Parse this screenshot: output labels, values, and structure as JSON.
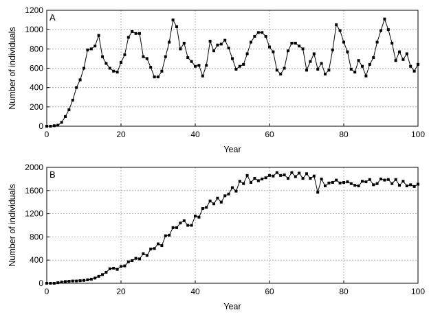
{
  "chart_data": [
    {
      "type": "line",
      "panel_label": "A",
      "xlabel": "Year",
      "ylabel": "Number of individuals",
      "xlim": [
        0,
        100
      ],
      "ylim": [
        0,
        1200
      ],
      "xticks": [
        0,
        20,
        40,
        60,
        80,
        100
      ],
      "yticks": [
        0,
        200,
        400,
        600,
        800,
        1000,
        1200
      ],
      "grid": true,
      "markers": "filled-square",
      "x": [
        0,
        1,
        2,
        3,
        4,
        5,
        6,
        7,
        8,
        9,
        10,
        11,
        12,
        13,
        14,
        15,
        16,
        17,
        18,
        19,
        20,
        21,
        22,
        23,
        24,
        25,
        26,
        27,
        28,
        29,
        30,
        31,
        32,
        33,
        34,
        35,
        36,
        37,
        38,
        39,
        40,
        41,
        42,
        43,
        44,
        45,
        46,
        47,
        48,
        49,
        50,
        51,
        52,
        53,
        54,
        55,
        56,
        57,
        58,
        59,
        60,
        61,
        62,
        63,
        64,
        65,
        66,
        67,
        68,
        69,
        70,
        71,
        72,
        73,
        74,
        75,
        76,
        77,
        78,
        79,
        80,
        81,
        82,
        83,
        84,
        85,
        86,
        87,
        88,
        89,
        90,
        91,
        92,
        93,
        94,
        95,
        96,
        97,
        98,
        99,
        100
      ],
      "y": [
        0,
        0,
        5,
        10,
        40,
        100,
        170,
        270,
        400,
        480,
        600,
        790,
        800,
        830,
        940,
        720,
        650,
        600,
        570,
        560,
        660,
        740,
        920,
        980,
        960,
        960,
        720,
        700,
        610,
        510,
        510,
        570,
        720,
        870,
        1100,
        1030,
        800,
        860,
        710,
        670,
        620,
        630,
        520,
        630,
        880,
        780,
        840,
        850,
        890,
        810,
        700,
        590,
        620,
        640,
        750,
        870,
        930,
        970,
        970,
        930,
        820,
        770,
        580,
        540,
        600,
        780,
        860,
        860,
        830,
        800,
        580,
        670,
        750,
        590,
        650,
        540,
        580,
        790,
        1050,
        990,
        870,
        770,
        590,
        560,
        680,
        620,
        520,
        640,
        710,
        870,
        990,
        1110,
        1000,
        860,
        680,
        770,
        690,
        750,
        620,
        570,
        640
      ]
    },
    {
      "type": "line",
      "panel_label": "B",
      "xlabel": "Year",
      "ylabel": "Number of individuals",
      "xlim": [
        0,
        100
      ],
      "ylim": [
        0,
        2000
      ],
      "xticks": [
        0,
        20,
        40,
        60,
        80,
        100
      ],
      "yticks": [
        0,
        400,
        800,
        1200,
        1600,
        2000
      ],
      "grid": true,
      "markers": "filled-square",
      "x": [
        0,
        1,
        2,
        3,
        4,
        5,
        6,
        7,
        8,
        9,
        10,
        11,
        12,
        13,
        14,
        15,
        16,
        17,
        18,
        19,
        20,
        21,
        22,
        23,
        24,
        25,
        26,
        27,
        28,
        29,
        30,
        31,
        32,
        33,
        34,
        35,
        36,
        37,
        38,
        39,
        40,
        41,
        42,
        43,
        44,
        45,
        46,
        47,
        48,
        49,
        50,
        51,
        52,
        53,
        54,
        55,
        56,
        57,
        58,
        59,
        60,
        61,
        62,
        63,
        64,
        65,
        66,
        67,
        68,
        69,
        70,
        71,
        72,
        73,
        74,
        75,
        76,
        77,
        78,
        79,
        80,
        81,
        82,
        83,
        84,
        85,
        86,
        87,
        88,
        89,
        90,
        91,
        92,
        93,
        94,
        95,
        96,
        97,
        98,
        99,
        100
      ],
      "y": [
        0,
        0,
        0,
        10,
        20,
        30,
        35,
        40,
        40,
        45,
        50,
        60,
        70,
        90,
        120,
        150,
        190,
        250,
        260,
        240,
        290,
        300,
        370,
        390,
        430,
        420,
        510,
        480,
        590,
        600,
        680,
        650,
        820,
        830,
        960,
        960,
        1040,
        1080,
        1000,
        1000,
        1160,
        1140,
        1290,
        1310,
        1420,
        1370,
        1470,
        1400,
        1510,
        1540,
        1650,
        1590,
        1760,
        1720,
        1860,
        1740,
        1810,
        1770,
        1800,
        1820,
        1860,
        1850,
        1910,
        1860,
        1870,
        1810,
        1910,
        1840,
        1900,
        1810,
        1890,
        1810,
        1850,
        1570,
        1800,
        1680,
        1730,
        1740,
        1780,
        1730,
        1740,
        1750,
        1720,
        1690,
        1680,
        1760,
        1750,
        1790,
        1700,
        1720,
        1800,
        1780,
        1790,
        1720,
        1790,
        1690,
        1760,
        1680,
        1700,
        1670,
        1710
      ]
    }
  ]
}
